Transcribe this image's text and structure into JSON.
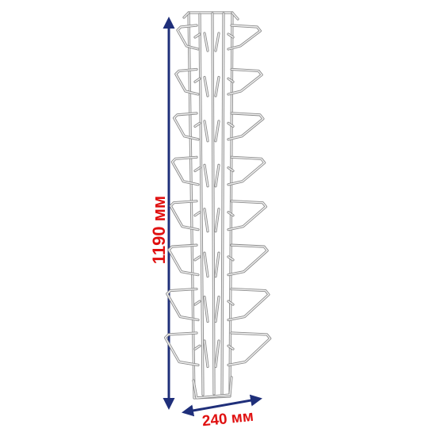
{
  "diagram": {
    "height_label": "1190 мм",
    "width_label": "240 мм",
    "colors": {
      "height_label": "#e01010",
      "width_label": "#e01010",
      "arrow": "#1f2f7a",
      "wire": "#8a8a8a",
      "wire_highlight": "#f4f4f4"
    },
    "tiers": 8
  }
}
